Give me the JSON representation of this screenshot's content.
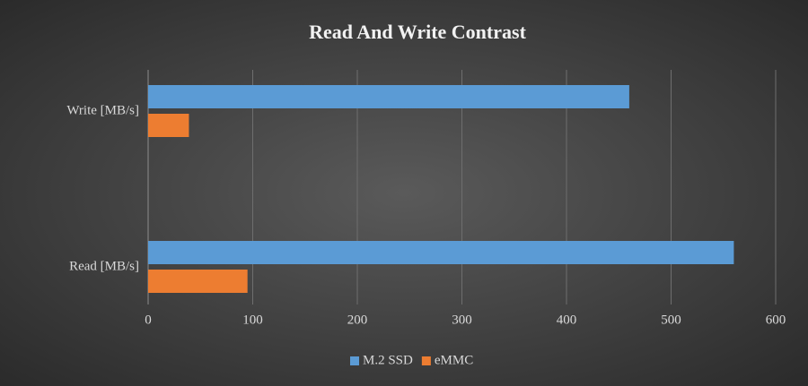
{
  "chart_data": {
    "type": "barh",
    "title": "Read And Write Contrast",
    "categories": [
      "Write [MB/s]",
      "Read [MB/s]"
    ],
    "series": [
      {
        "name": "M.2 SSD",
        "color": "#5b9bd5",
        "values": [
          460,
          560
        ]
      },
      {
        "name": "eMMC",
        "color": "#ed7d31",
        "values": [
          39,
          95
        ]
      }
    ],
    "xlim": [
      0,
      600
    ],
    "xticks": [
      0,
      100,
      200,
      300,
      400,
      500,
      600
    ],
    "grid": true,
    "legend": "bottom"
  }
}
